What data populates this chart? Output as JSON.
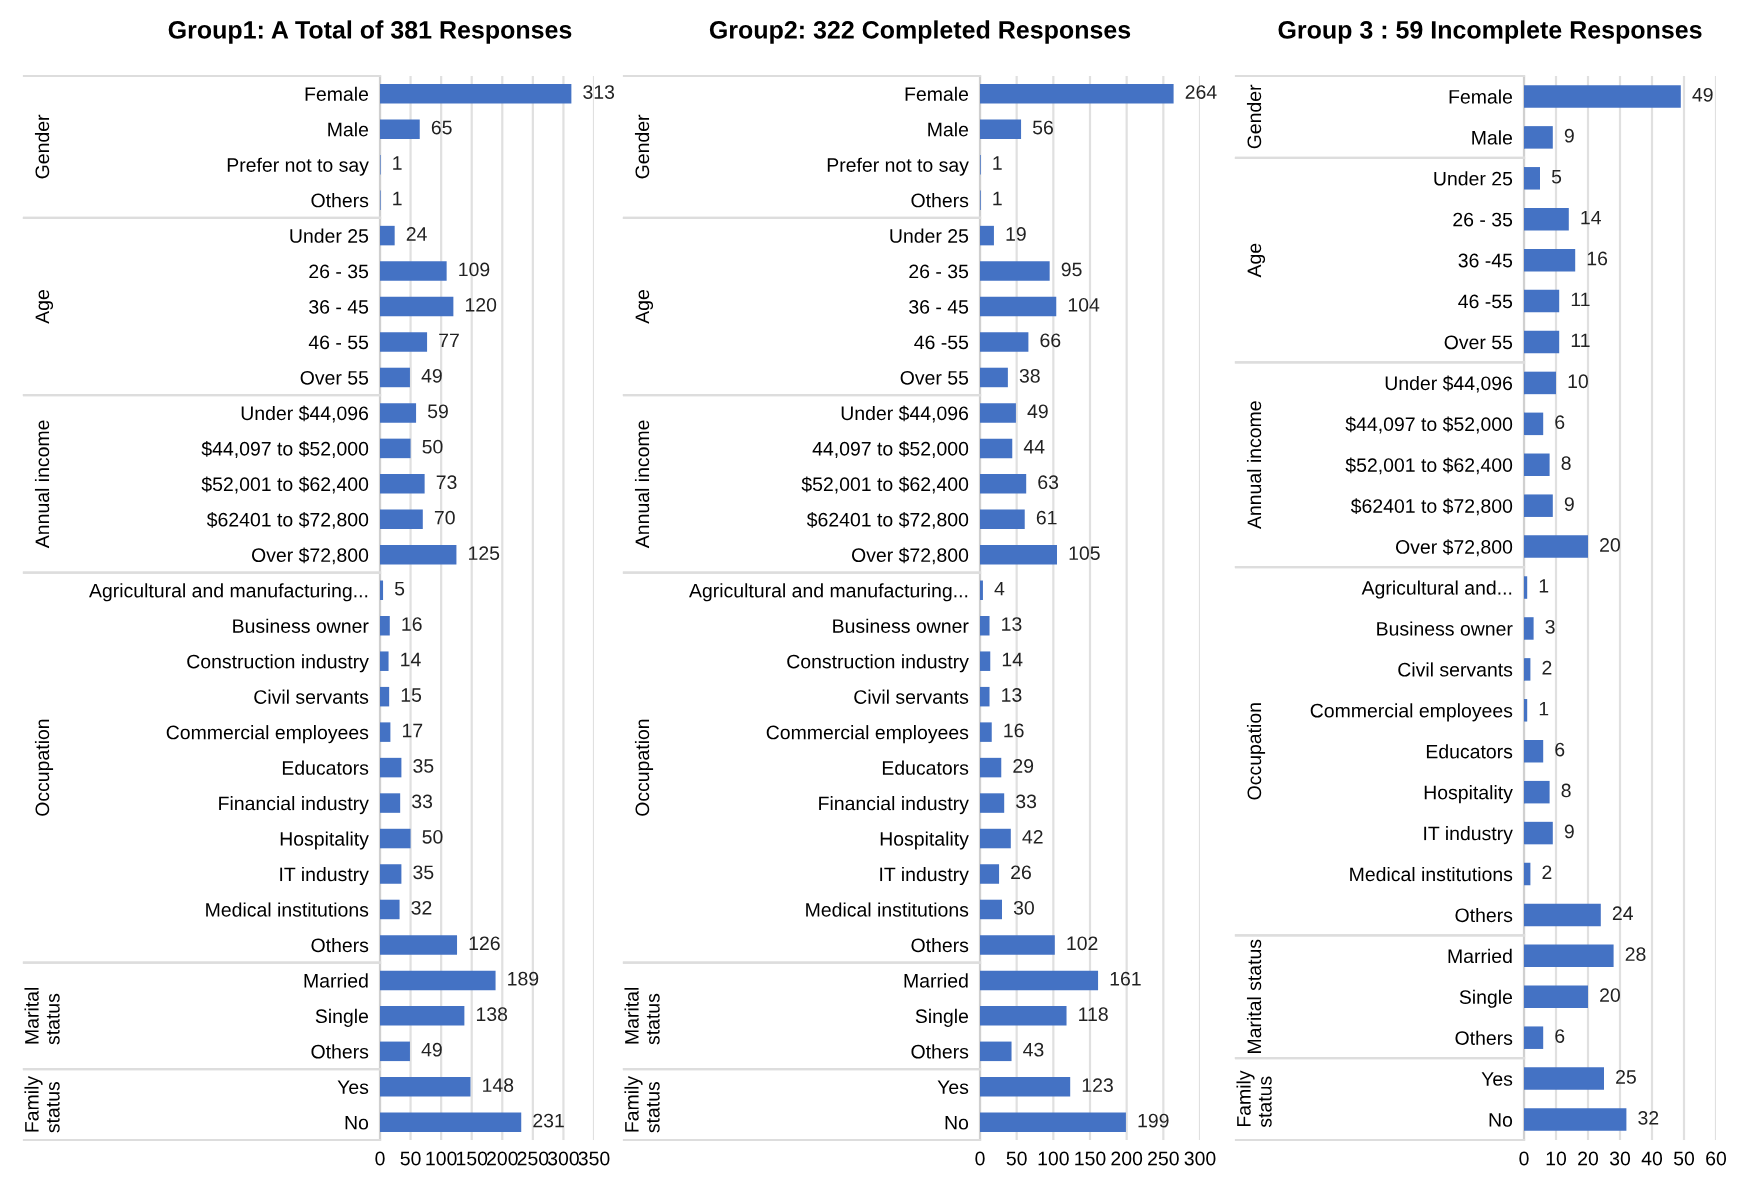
{
  "chart_data": [
    {
      "type": "bar",
      "orientation": "horizontal",
      "title": "Group1: A Total of 381 Responses",
      "categories": [
        "Female",
        "Male",
        "Prefer not to say",
        "Others",
        "Under 25",
        "26 - 35",
        "36 - 45",
        "46 - 55",
        "Over 55",
        "Under $44,096",
        "$44,097 to $52,000",
        "$52,001 to $62,400",
        "$62401 to $72,800",
        "Over $72,800",
        "Agricultural and manufacturing...",
        "Business owner",
        "Construction industry",
        "Civil servants",
        "Commercial employees",
        "Educators",
        "Financial industry",
        "Hospitality",
        "IT industry",
        "Medical institutions",
        "Others",
        "Married",
        "Single",
        "Others",
        "Yes",
        "No"
      ],
      "values": [
        313,
        65,
        1,
        1,
        24,
        109,
        120,
        77,
        49,
        59,
        50,
        73,
        70,
        125,
        5,
        16,
        14,
        15,
        17,
        35,
        33,
        50,
        35,
        32,
        126,
        189,
        138,
        49,
        148,
        231
      ],
      "color": "#4472c4",
      "xlim": [
        0,
        350
      ],
      "xticks": [
        0,
        50,
        100,
        150,
        200,
        250,
        300,
        350
      ],
      "grid": "x",
      "data_labels": true,
      "annotations": [
        "Gender",
        "Age",
        "Annual income",
        "Occupation",
        "Marital\nstatus",
        "Family\nstatus"
      ]
    },
    {
      "type": "bar",
      "orientation": "horizontal",
      "title": "Group2: 322 Completed Responses",
      "categories": [
        "Female",
        "Male",
        "Prefer not to say",
        "Others",
        "Under 25",
        "26 - 35",
        "36 - 45",
        "46 -55",
        "Over 55",
        "Under $44,096",
        "44,097 to $52,000",
        "$52,001 to $62,400",
        "$62401 to $72,800",
        "Over $72,800",
        "Agricultural and manufacturing...",
        "Business owner",
        "Construction industry",
        "Civil servants",
        "Commercial employees",
        "Educators",
        "Financial industry",
        "Hospitality",
        "IT industry",
        "Medical institutions",
        "Others",
        "Married",
        "Single",
        "Others",
        "Yes",
        "No"
      ],
      "values": [
        264,
        56,
        1,
        1,
        19,
        95,
        104,
        66,
        38,
        49,
        44,
        63,
        61,
        105,
        4,
        13,
        14,
        13,
        16,
        29,
        33,
        42,
        26,
        30,
        102,
        161,
        118,
        43,
        123,
        199
      ],
      "color": "#4472c4",
      "xlim": [
        0,
        300
      ],
      "xticks": [
        0,
        50,
        100,
        150,
        200,
        250,
        300
      ],
      "grid": "x",
      "data_labels": true,
      "annotations": [
        "Gender",
        "Age",
        "Annual income",
        "Occupation",
        "Marital\nstatus",
        "Family\nstatus"
      ]
    },
    {
      "type": "bar",
      "orientation": "horizontal",
      "title": "Group 3 : 59 Incomplete Responses",
      "categories": [
        "Female",
        "Male",
        "Under 25",
        "26 - 35",
        "36 -45",
        "46 -55",
        "Over 55",
        "Under $44,096",
        "$44,097 to $52,000",
        "$52,001 to $62,400",
        "$62401 to $72,800",
        "Over $72,800",
        "Agricultural and...",
        "Business owner",
        "Civil servants",
        "Commercial employees",
        "Educators",
        "Hospitality",
        "IT industry",
        "Medical institutions",
        "Others",
        "Married",
        "Single",
        "Others",
        "Yes",
        "No"
      ],
      "values": [
        49,
        9,
        5,
        14,
        16,
        11,
        11,
        10,
        6,
        8,
        9,
        20,
        1,
        3,
        2,
        1,
        6,
        8,
        9,
        2,
        24,
        28,
        20,
        6,
        25,
        32
      ],
      "color": "#4472c4",
      "xlim": [
        0,
        60
      ],
      "xticks": [
        0,
        10,
        20,
        30,
        40,
        50,
        60
      ],
      "grid": "x",
      "data_labels": true,
      "annotations": [
        "Gender",
        "Age",
        "Annual income",
        "Occupation",
        "Marital status",
        "Family\nstatus"
      ]
    }
  ]
}
